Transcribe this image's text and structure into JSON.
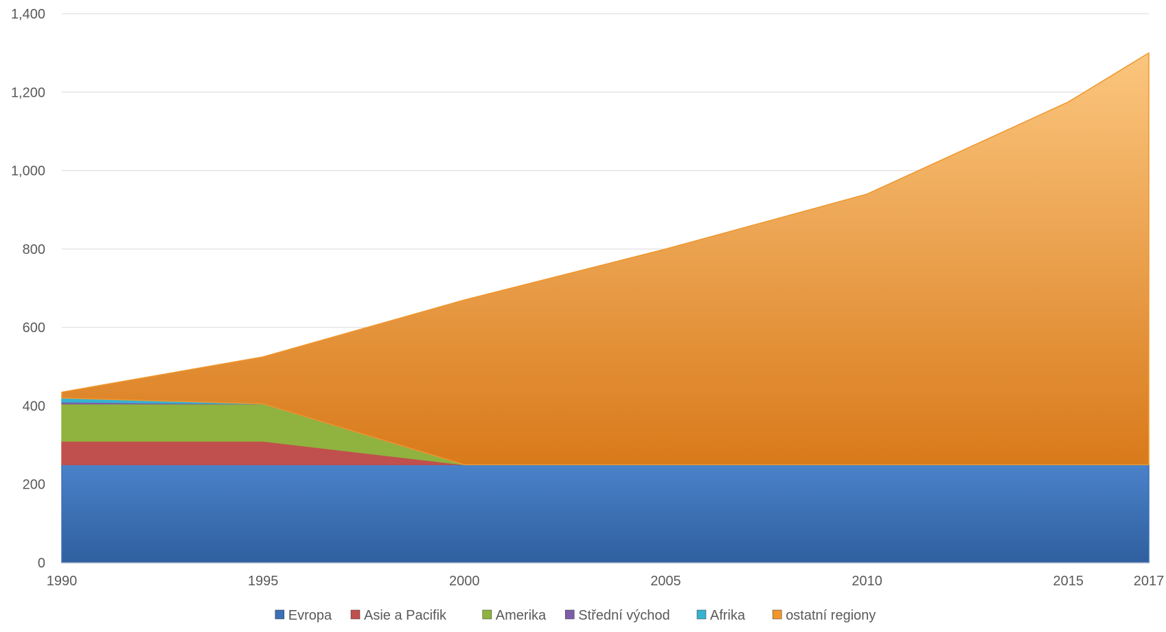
{
  "chart_data": {
    "type": "area",
    "stacked": true,
    "title": "",
    "xlabel": "",
    "ylabel": "",
    "x": [
      1990,
      1995,
      2000,
      2005,
      2010,
      2015,
      2017
    ],
    "x_ticks": [
      "1990",
      "1995",
      "2000",
      "2005",
      "2010",
      "2015",
      "2017"
    ],
    "ylim": [
      0,
      1400
    ],
    "y_ticks": [
      "0",
      "200",
      "400",
      "600",
      "800",
      "1,000",
      "1,200",
      "1,400"
    ],
    "grid": "horizontal",
    "legend_position": "bottom",
    "series": [
      {
        "name": "Evropa",
        "color": "#3b6fb6",
        "values": [
          250,
          250,
          250,
          250,
          250,
          250,
          250
        ]
      },
      {
        "name": "Asie a Pacifik",
        "color": "#c0504d",
        "values": [
          60,
          60,
          0,
          0,
          0,
          0,
          0
        ]
      },
      {
        "name": "Amerika",
        "color": "#8fb33e",
        "values": [
          95,
          95,
          0,
          0,
          0,
          0,
          0
        ]
      },
      {
        "name": "Střední východ",
        "color": "#7b5ea7",
        "values": [
          5,
          0,
          0,
          0,
          0,
          0,
          0
        ]
      },
      {
        "name": "Afrika",
        "color": "#35b3cf",
        "values": [
          10,
          0,
          0,
          0,
          0,
          0,
          0
        ]
      },
      {
        "name": "ostatní regiony",
        "color": "#f0962b",
        "values": [
          15,
          120,
          420,
          550,
          690,
          925,
          1050
        ]
      }
    ]
  }
}
